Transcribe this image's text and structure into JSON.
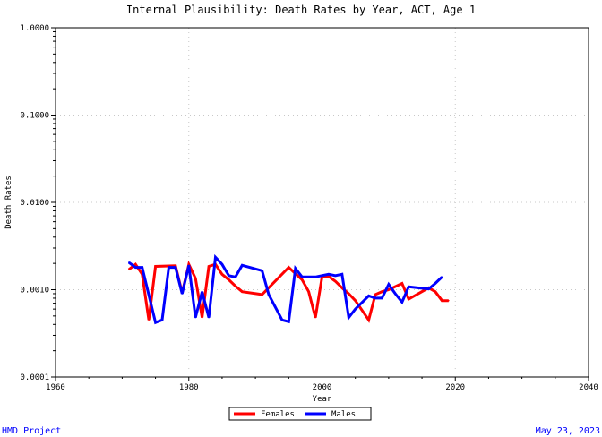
{
  "footer": {
    "left": "HMD Project",
    "right": "May 23, 2023"
  },
  "chart_data": {
    "type": "line",
    "title": "Internal Plausibility: Death Rates by Year, ACT, Age 1",
    "xlabel": "Year",
    "ylabel": "Death Rates",
    "xlim": [
      1960,
      2040
    ],
    "ylim": [
      0.0001,
      1.0
    ],
    "yscale": "log",
    "grid": true,
    "legend_position": "bottom",
    "x_ticks": [
      1960,
      1980,
      2000,
      2020,
      2040
    ],
    "x_tick_labels": [
      "1960",
      "1980",
      "2000",
      "2020",
      "2040"
    ],
    "y_ticks": [
      0.0001,
      0.001,
      0.01,
      0.1,
      1.0
    ],
    "y_tick_labels": [
      "0.0001",
      "0.0010",
      "0.0100",
      "0.1000",
      "1.0000"
    ],
    "series": [
      {
        "name": "Females",
        "color": "#ff0000",
        "x": [
          1971,
          1972,
          1973,
          1974,
          1975,
          1977,
          1978,
          1979,
          1980,
          1981,
          1982,
          1983,
          1984,
          1985,
          1986,
          1987,
          1988,
          1991,
          1995,
          1997,
          1998,
          1999,
          2000,
          2001,
          2002,
          2003,
          2004,
          2005,
          2007,
          2008,
          2009,
          2010,
          2012,
          2013,
          2016,
          2017,
          2018,
          2019
        ],
        "y": [
          0.0017,
          0.00195,
          0.0015,
          0.00045,
          0.00185,
          0.00187,
          0.00188,
          0.00092,
          0.00195,
          0.00135,
          0.00048,
          0.00185,
          0.00195,
          0.0015,
          0.0013,
          0.0011,
          0.00095,
          0.00088,
          0.0018,
          0.0013,
          0.00095,
          0.00048,
          0.0014,
          0.00142,
          0.00125,
          0.00105,
          0.0009,
          0.00075,
          0.00045,
          0.00088,
          0.00095,
          0.001,
          0.00118,
          0.00078,
          0.00105,
          0.00095,
          0.00075,
          0.00075
        ]
      },
      {
        "name": "Males",
        "color": "#0000ff",
        "x": [
          1971,
          1972,
          1973,
          1975,
          1976,
          1977,
          1978,
          1979,
          1980,
          1981,
          1982,
          1983,
          1984,
          1985,
          1986,
          1987,
          1988,
          1991,
          1992,
          1994,
          1995,
          1996,
          1997,
          1999,
          2001,
          2002,
          2003,
          2004,
          2005,
          2007,
          2008,
          2009,
          2010,
          2011,
          2012,
          2013,
          2016,
          2017,
          2018
        ],
        "y": [
          0.00205,
          0.0018,
          0.0018,
          0.00042,
          0.00045,
          0.0018,
          0.0018,
          0.0009,
          0.0019,
          0.00048,
          0.00095,
          0.00048,
          0.00235,
          0.00195,
          0.00145,
          0.0014,
          0.0019,
          0.00165,
          0.00088,
          0.00045,
          0.00043,
          0.00175,
          0.0014,
          0.0014,
          0.0015,
          0.00145,
          0.0015,
          0.00048,
          0.0006,
          0.00085,
          0.0008,
          0.0008,
          0.00115,
          0.0009,
          0.00072,
          0.00108,
          0.00102,
          0.00118,
          0.0014
        ]
      }
    ]
  }
}
